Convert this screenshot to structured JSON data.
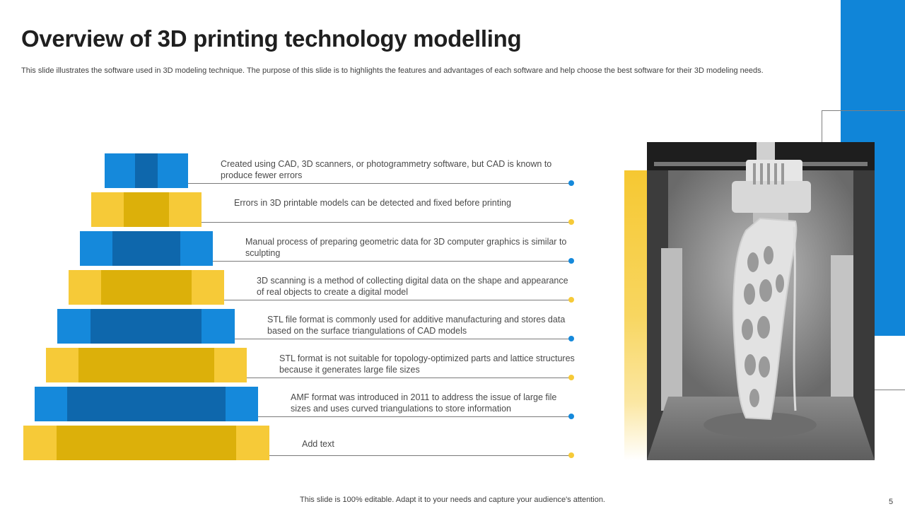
{
  "slide": {
    "title": "Overview of 3D printing technology modelling",
    "subtitle": "This slide illustrates the software used in 3D modeling technique. The purpose of this slide is to highlights the features and advantages of each software and help choose the best software for their 3D modeling needs.",
    "footer": "This slide is 100% editable. Adapt it to your needs and capture your audience's attention.",
    "page_number": "5"
  },
  "colors": {
    "accent_blue": "#1589db",
    "dark_blue": "#0e67ac",
    "accent_yellow": "#f6ca38",
    "dark_yellow": "#dcb00a"
  },
  "pyramid": {
    "layers": [
      {
        "color": "blue",
        "text": "Created using CAD, 3D scanners, or photogrammetry software, but CAD is known to produce fewer errors"
      },
      {
        "color": "yellow",
        "text": "Errors in 3D printable models can be detected and fixed before printing"
      },
      {
        "color": "blue",
        "text": "Manual process of preparing geometric data for 3D computer graphics is similar to sculpting"
      },
      {
        "color": "yellow",
        "text": "3D scanning is a method of collecting digital data on the shape and appearance of real objects to create a digital model"
      },
      {
        "color": "blue",
        "text": "STL file format is commonly used for additive manufacturing and stores data based on the surface triangulations of CAD models"
      },
      {
        "color": "yellow",
        "text": "STL format is not suitable for topology-optimized parts and lattice structures because it generates large file sizes"
      },
      {
        "color": "blue",
        "text": "AMF format was introduced in 2011 to address the issue of large file sizes and uses curved triangulations to store information"
      },
      {
        "color": "yellow",
        "text": "Add text"
      }
    ]
  }
}
